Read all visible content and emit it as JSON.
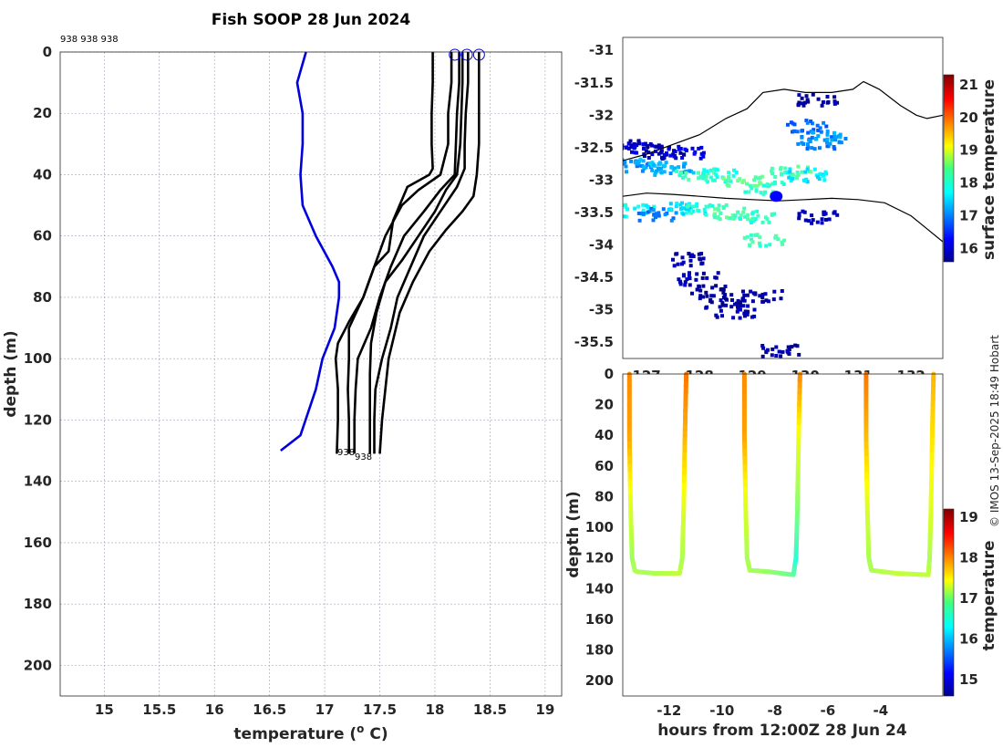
{
  "colors": {
    "profile_line": "#000000",
    "climatology_line": "#0000dd",
    "marker": "#0000dd",
    "land_line": "#000000"
  },
  "credit": "© IMOS 13-Sep-2025 18:49 Hobart",
  "chart_data": [
    {
      "id": "profiles",
      "type": "line",
      "title": "Fish SOOP 28 Jun 2024",
      "xlabel": "temperature (",
      "xlabel_unit_sup": "o",
      "xlabel_unit": " C)",
      "ylabel": "depth (m)",
      "xlim": [
        14.6,
        19.15
      ],
      "ylim": [
        210,
        0
      ],
      "xticks": [
        15,
        15.5,
        16,
        16.5,
        17,
        17.5,
        18,
        18.5,
        19
      ],
      "yticks": [
        0,
        20,
        40,
        60,
        80,
        100,
        120,
        140,
        160,
        180,
        200
      ],
      "top_annotation": "938 938 938",
      "bottom_annotations": [
        "938",
        "938"
      ],
      "surface_markers": [
        18.18,
        18.29,
        18.4
      ],
      "series": [
        {
          "name": "climatology",
          "color": "#0000dd",
          "x": [
            16.83,
            16.75,
            16.8,
            16.8,
            16.78,
            16.8,
            16.92,
            17.07,
            17.13,
            17.13,
            17.09,
            16.98,
            16.92,
            16.78,
            16.6
          ],
          "y": [
            0,
            10,
            20,
            30,
            40,
            50,
            60,
            70,
            75,
            80,
            90,
            100,
            110,
            125,
            130
          ]
        },
        {
          "name": "profile-1",
          "color": "#000000",
          "x": [
            17.98,
            17.98,
            17.97,
            17.97,
            17.98,
            17.95,
            17.75,
            17.62,
            17.58,
            17.45,
            17.35,
            17.22,
            17.12,
            17.1,
            17.12,
            17.12,
            17.11
          ],
          "y": [
            0,
            10,
            20,
            30,
            38,
            40,
            44,
            55,
            65,
            70,
            80,
            88,
            95,
            100,
            110,
            120,
            131
          ]
        },
        {
          "name": "profile-2",
          "color": "#000000",
          "x": [
            18.15,
            18.15,
            18.12,
            18.12,
            18.05,
            17.85,
            17.7,
            17.55,
            17.45,
            17.35,
            17.22,
            17.22,
            17.21,
            17.22,
            17.22
          ],
          "y": [
            0,
            10,
            20,
            30,
            40,
            45,
            50,
            60,
            70,
            80,
            90,
            100,
            110,
            120,
            131
          ]
        },
        {
          "name": "profile-3",
          "color": "#000000",
          "x": [
            18.22,
            18.22,
            18.2,
            18.19,
            18.18,
            18.05,
            17.9,
            17.72,
            17.6,
            17.5,
            17.42,
            17.3,
            17.28,
            17.27,
            17.27
          ],
          "y": [
            0,
            10,
            20,
            30,
            40,
            45,
            52,
            60,
            70,
            80,
            90,
            100,
            110,
            120,
            131
          ]
        },
        {
          "name": "profile-4",
          "color": "#000000",
          "x": [
            18.25,
            18.25,
            18.24,
            18.23,
            18.2,
            18.1,
            18.0,
            17.85,
            17.7,
            17.55,
            17.47,
            17.42,
            17.41,
            17.41,
            17.41
          ],
          "y": [
            0,
            10,
            20,
            30,
            40,
            45,
            52,
            60,
            68,
            75,
            85,
            95,
            105,
            120,
            131
          ]
        },
        {
          "name": "profile-5",
          "color": "#000000",
          "x": [
            18.3,
            18.3,
            18.28,
            18.27,
            18.27,
            18.2,
            18.05,
            17.9,
            17.78,
            17.66,
            17.6,
            17.52,
            17.46,
            17.45,
            17.45
          ],
          "y": [
            0,
            10,
            20,
            30,
            38,
            44,
            52,
            60,
            70,
            80,
            90,
            100,
            110,
            120,
            131
          ]
        },
        {
          "name": "profile-6",
          "color": "#000000",
          "x": [
            18.4,
            18.4,
            18.4,
            18.4,
            18.38,
            18.35,
            18.25,
            18.1,
            17.95,
            17.8,
            17.68,
            17.58,
            17.55,
            17.52,
            17.5
          ],
          "y": [
            0,
            10,
            20,
            30,
            40,
            47,
            52,
            58,
            65,
            75,
            85,
            100,
            110,
            120,
            131
          ]
        }
      ]
    },
    {
      "id": "map",
      "type": "heatmap",
      "xlim": [
        126.55,
        132.6
      ],
      "ylim": [
        -35.75,
        -30.8
      ],
      "xticks": [
        127,
        128,
        129,
        130,
        131,
        132
      ],
      "yticks": [
        -31,
        -31.5,
        -32,
        -32.5,
        -33,
        -33.5,
        -34,
        -34.5,
        -35,
        -35.5
      ],
      "colorbar_label": "surface temperature",
      "colorbar_range": [
        15.6,
        21.3
      ],
      "colorbar_ticks": [
        16,
        17,
        18,
        19,
        20,
        21
      ],
      "coastline": {
        "lon": [
          126.55,
          127.0,
          127.5,
          128.0,
          128.5,
          128.9,
          129.2,
          129.6,
          130.0,
          130.5,
          130.9,
          131.1,
          131.4,
          131.8,
          132.1,
          132.3,
          132.6
        ],
        "lat": [
          -32.7,
          -32.6,
          -32.45,
          -32.3,
          -32.05,
          -31.9,
          -31.65,
          -31.6,
          -31.65,
          -31.65,
          -31.6,
          -31.48,
          -31.6,
          -31.85,
          -32.0,
          -32.05,
          -32.0
        ]
      },
      "track": {
        "lon": [
          126.55,
          127.0,
          127.5,
          128.0,
          128.5,
          129.0,
          129.5,
          130.0,
          130.5,
          131.0,
          131.5,
          132.0,
          132.3,
          132.6
        ],
        "lat": [
          -33.25,
          -33.2,
          -33.22,
          -33.25,
          -33.28,
          -33.3,
          -33.32,
          -33.3,
          -33.28,
          -33.3,
          -33.35,
          -33.55,
          -33.75,
          -33.95
        ]
      },
      "position": {
        "lon": 129.45,
        "lat": -33.25
      },
      "sst_patches": [
        {
          "lon": 126.7,
          "lat": -32.45,
          "value": 15.9
        },
        {
          "lon": 126.95,
          "lat": -32.5,
          "value": 16.1
        },
        {
          "lon": 127.3,
          "lat": -32.55,
          "value": 15.8
        },
        {
          "lon": 127.7,
          "lat": -32.55,
          "value": 16.2
        },
        {
          "lon": 126.7,
          "lat": -32.75,
          "value": 17.1
        },
        {
          "lon": 127.1,
          "lat": -32.75,
          "value": 17.4
        },
        {
          "lon": 127.5,
          "lat": -32.8,
          "value": 17.3
        },
        {
          "lon": 127.9,
          "lat": -32.9,
          "value": 18.1
        },
        {
          "lon": 128.3,
          "lat": -32.9,
          "value": 17.9
        },
        {
          "lon": 128.8,
          "lat": -33.0,
          "value": 18.3
        },
        {
          "lon": 129.2,
          "lat": -33.1,
          "value": 18.0
        },
        {
          "lon": 129.7,
          "lat": -32.85,
          "value": 18.2
        },
        {
          "lon": 130.0,
          "lat": -32.9,
          "value": 17.6
        },
        {
          "lon": 130.2,
          "lat": -32.4,
          "value": 17.0
        },
        {
          "lon": 130.0,
          "lat": -32.15,
          "value": 16.9
        },
        {
          "lon": 130.4,
          "lat": -32.3,
          "value": 17.2
        },
        {
          "lon": 130.2,
          "lat": -31.75,
          "value": 15.8
        },
        {
          "lon": 126.75,
          "lat": -33.45,
          "value": 17.8
        },
        {
          "lon": 127.2,
          "lat": -33.5,
          "value": 17.0
        },
        {
          "lon": 127.7,
          "lat": -33.4,
          "value": 17.6
        },
        {
          "lon": 128.1,
          "lat": -33.45,
          "value": 18.0
        },
        {
          "lon": 128.6,
          "lat": -33.5,
          "value": 18.2
        },
        {
          "lon": 129.0,
          "lat": -33.55,
          "value": 18.0
        },
        {
          "lon": 129.2,
          "lat": -33.9,
          "value": 18.1
        },
        {
          "lon": 130.2,
          "lat": -33.55,
          "value": 15.9
        },
        {
          "lon": 127.8,
          "lat": -34.2,
          "value": 15.8
        },
        {
          "lon": 127.95,
          "lat": -34.5,
          "value": 15.9
        },
        {
          "lon": 128.2,
          "lat": -34.7,
          "value": 15.7
        },
        {
          "lon": 128.45,
          "lat": -34.85,
          "value": 15.8
        },
        {
          "lon": 128.65,
          "lat": -35.0,
          "value": 15.9
        },
        {
          "lon": 129.15,
          "lat": -34.75,
          "value": 15.8
        },
        {
          "lon": 129.5,
          "lat": -35.6,
          "value": 15.8
        }
      ]
    },
    {
      "id": "section",
      "type": "scatter",
      "xlabel": "hours from 12:00Z 28 Jun 24",
      "ylabel": "depth (m)",
      "xlim": [
        -13.75,
        -1.65
      ],
      "ylim": [
        210,
        0
      ],
      "xticks": [
        -12,
        -10,
        -8,
        -6,
        -4
      ],
      "yticks": [
        0,
        20,
        40,
        60,
        80,
        100,
        120,
        140,
        160,
        180,
        200
      ],
      "colorbar_label": "temperature",
      "colorbar_range": [
        14.6,
        19.2
      ],
      "colorbar_ticks": [
        15,
        16,
        17,
        18,
        19
      ],
      "casts": [
        {
          "hours": [
            -13.5,
            -13.5,
            -13.45,
            -13.4,
            -13.3,
            -13.2
          ],
          "depth": [
            0,
            40,
            90,
            120,
            128,
            129
          ],
          "temperature": [
            18.0,
            17.9,
            17.3,
            17.05,
            17.1,
            17.1
          ]
        },
        {
          "hours": [
            -13.2,
            -12.5,
            -11.6
          ],
          "depth": [
            129,
            130,
            130
          ],
          "temperature": [
            17.1,
            17.1,
            17.2
          ]
        },
        {
          "hours": [
            -11.6,
            -11.5,
            -11.45,
            -11.4,
            -11.35
          ],
          "depth": [
            130,
            120,
            90,
            40,
            0
          ],
          "temperature": [
            17.2,
            17.1,
            17.3,
            17.8,
            18.1
          ]
        },
        {
          "hours": [
            -9.15,
            -9.15,
            -9.1,
            -9.05,
            -8.95
          ],
          "depth": [
            0,
            40,
            90,
            120,
            128
          ],
          "temperature": [
            18.0,
            17.9,
            17.3,
            17.1,
            17.1
          ]
        },
        {
          "hours": [
            -8.95,
            -8.2,
            -7.3
          ],
          "depth": [
            128,
            129,
            131
          ],
          "temperature": [
            17.1,
            17.0,
            16.8
          ]
        },
        {
          "hours": [
            -7.3,
            -7.2,
            -7.15,
            -7.1,
            -7.05
          ],
          "depth": [
            131,
            120,
            90,
            40,
            0
          ],
          "temperature": [
            16.8,
            16.5,
            16.9,
            17.4,
            18.0
          ]
        },
        {
          "hours": [
            -4.55,
            -4.55,
            -4.5,
            -4.45,
            -4.35
          ],
          "depth": [
            0,
            40,
            90,
            120,
            128
          ],
          "temperature": [
            18.1,
            17.8,
            17.3,
            17.1,
            17.1
          ]
        },
        {
          "hours": [
            -4.35,
            -3.4,
            -2.2
          ],
          "depth": [
            128,
            130,
            131
          ],
          "temperature": [
            17.1,
            17.2,
            17.2
          ]
        },
        {
          "hours": [
            -2.2,
            -2.15,
            -2.1,
            -2.05,
            -2.0
          ],
          "depth": [
            131,
            120,
            90,
            40,
            0
          ],
          "temperature": [
            17.2,
            17.1,
            17.3,
            17.6,
            17.8
          ]
        }
      ]
    }
  ]
}
